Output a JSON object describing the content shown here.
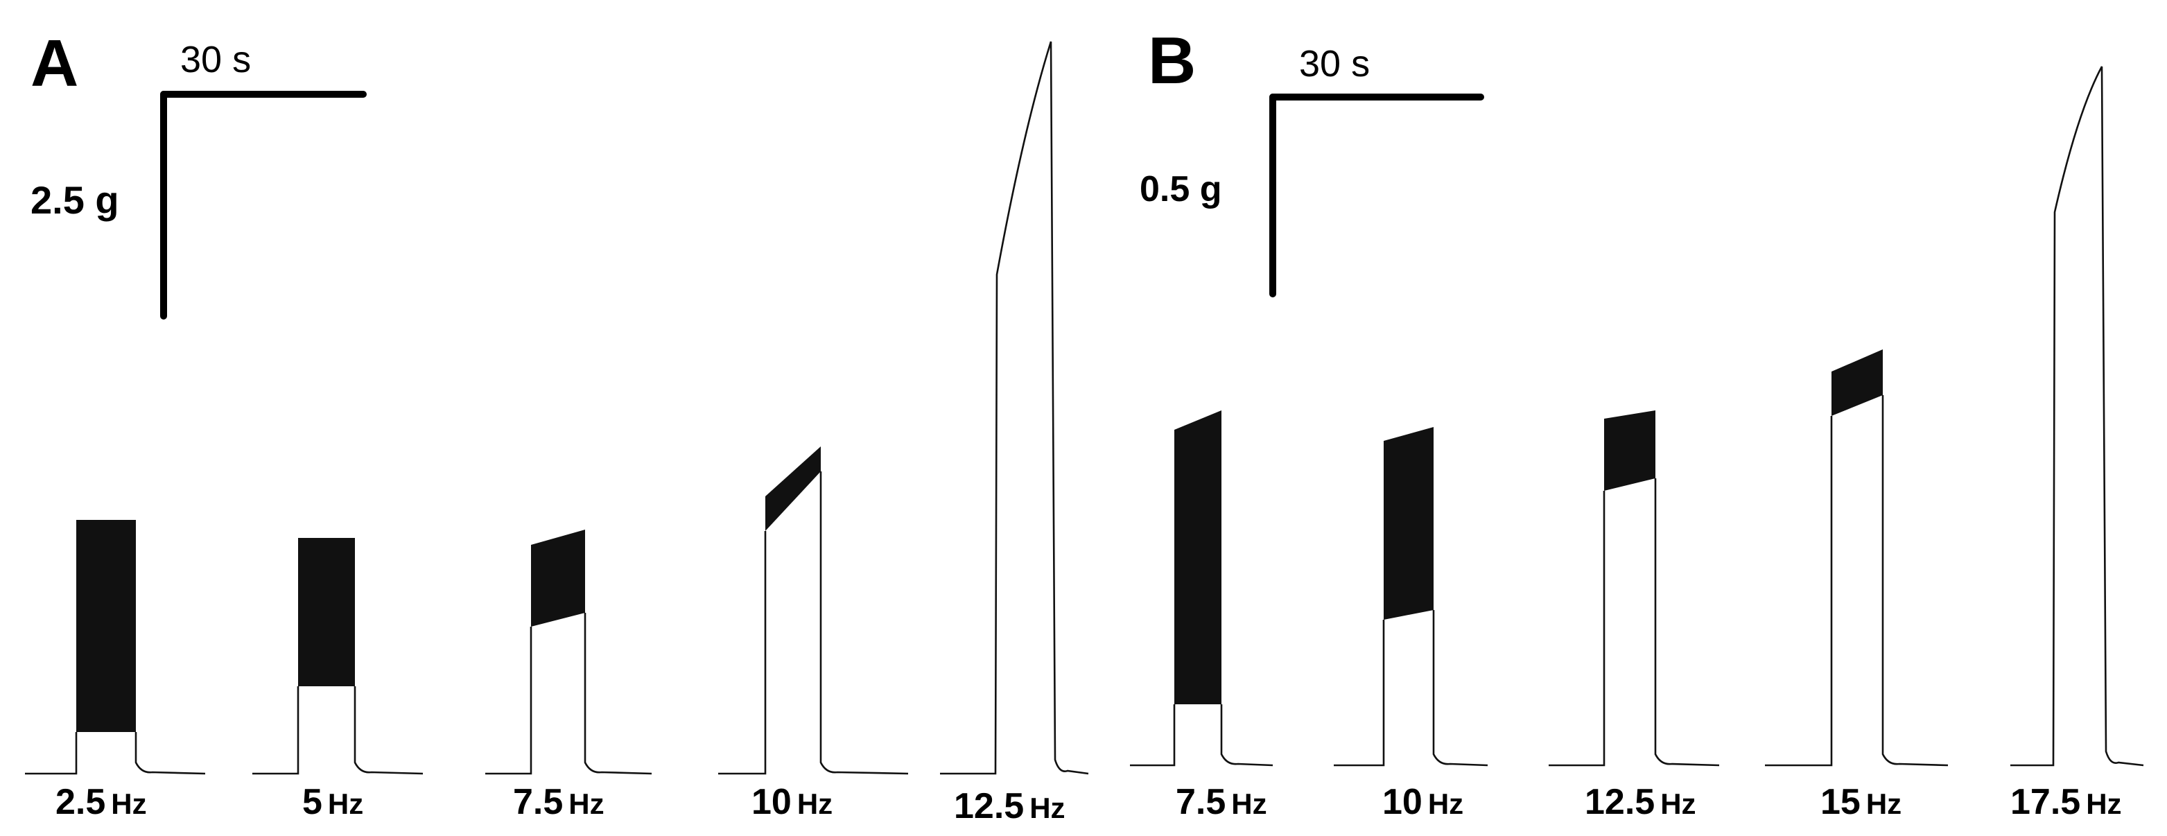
{
  "panels": [
    {
      "label": "A",
      "time_scale": "30 s",
      "force_scale": "2.5 g",
      "traces": [
        {
          "frequency": "2.5",
          "unit": "Hz"
        },
        {
          "frequency": "5",
          "unit": "Hz"
        },
        {
          "frequency": "7.5",
          "unit": "Hz"
        },
        {
          "frequency": "10",
          "unit": "Hz"
        },
        {
          "frequency": "12.5",
          "unit": "Hz"
        }
      ]
    },
    {
      "label": "B",
      "time_scale": "30 s",
      "force_scale": "0.5 g",
      "traces": [
        {
          "frequency": "7.5",
          "unit": "Hz"
        },
        {
          "frequency": "10",
          "unit": "Hz"
        },
        {
          "frequency": "12.5",
          "unit": "Hz"
        },
        {
          "frequency": "15",
          "unit": "Hz"
        },
        {
          "frequency": "17.5",
          "unit": "Hz"
        }
      ]
    }
  ]
}
